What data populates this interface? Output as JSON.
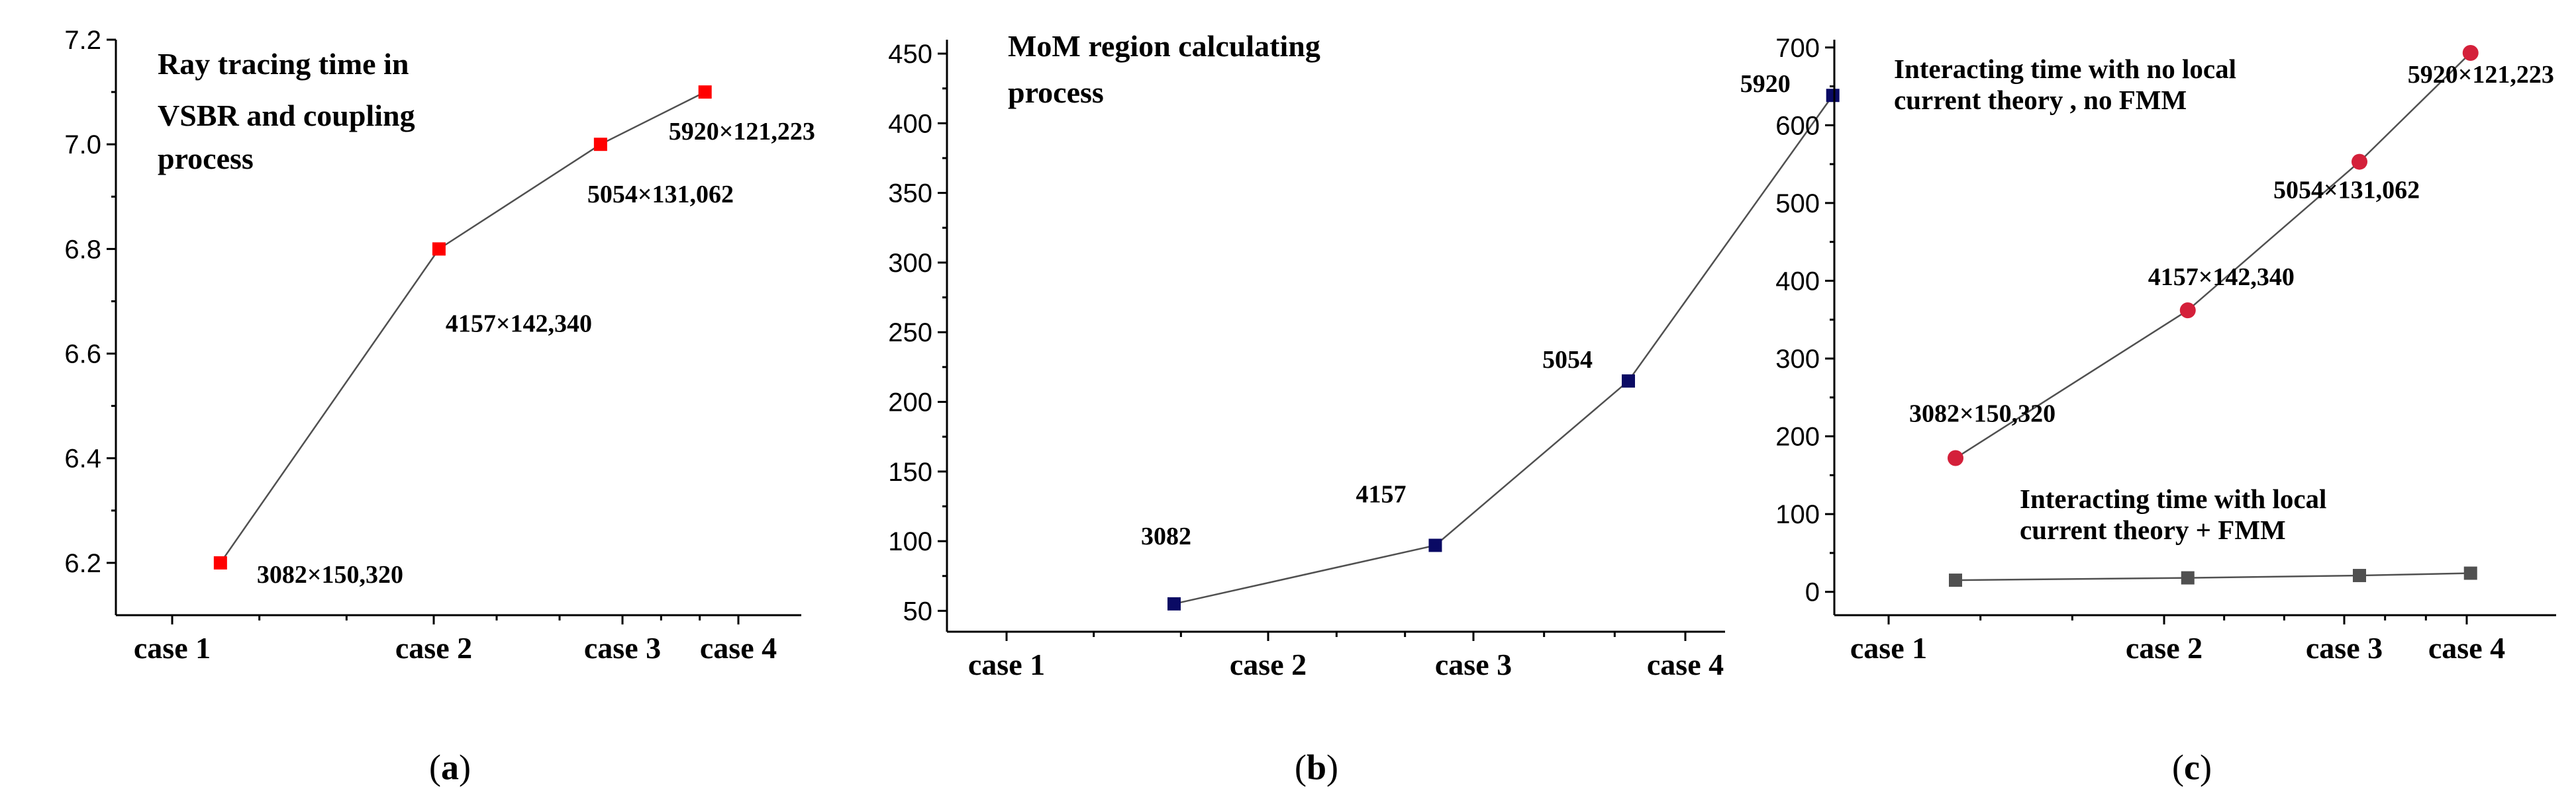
{
  "chart_data": [
    {
      "type": "line",
      "panel_label": "a",
      "title_lines": [
        "Ray tracing time in",
        "VSBR and coupling",
        "process"
      ],
      "categories": [
        "case 1",
        "case 2",
        "case 3",
        "case 4"
      ],
      "ylim": [
        6.1,
        7.2
      ],
      "yticks": [
        "6.2",
        "6.4",
        "6.6",
        "6.8",
        "7.0",
        "7.2"
      ],
      "series": [
        {
          "name": "Ray tracing time",
          "color": "#ff0000",
          "marker": "square",
          "x": [
            0.55,
            1.7,
            2.55,
            3.1
          ],
          "values": [
            6.2,
            6.8,
            7.0,
            7.1
          ],
          "labels": [
            "3082×150,320",
            "4157×142,340",
            "5054×131,062",
            "5920×121,223"
          ]
        }
      ]
    },
    {
      "type": "line",
      "panel_label": "b",
      "title_lines": [
        "MoM region calculating",
        "process"
      ],
      "categories": [
        "case 1",
        "case 2",
        "case 3",
        "case 4"
      ],
      "ylim": [
        35,
        460
      ],
      "yticks": [
        "50",
        "100",
        "150",
        "200",
        "250",
        "300",
        "350",
        "400",
        "450"
      ],
      "series": [
        {
          "name": "MoM region",
          "color": "#0a0a64",
          "marker": "square",
          "x": [
            1.0,
            2.15,
            3.0,
            3.9
          ],
          "values": [
            55,
            97,
            215,
            420
          ],
          "labels": [
            "3082",
            "4157",
            "5054",
            "5920"
          ]
        }
      ]
    },
    {
      "type": "line",
      "panel_label": "c",
      "title_lines": [
        "Interacting time with no local",
        "current theory , no FMM"
      ],
      "annotation_lines": [
        "Interacting time with local",
        "current theory + FMM"
      ],
      "categories": [
        "case 1",
        "case 2",
        "case 3",
        "case 4"
      ],
      "ylim": [
        -30,
        710
      ],
      "yticks": [
        "0",
        "100",
        "200",
        "300",
        "400",
        "500",
        "600",
        "700"
      ],
      "series": [
        {
          "name": "Interacting time with no local current theory , no FMM",
          "color": "#d4203a",
          "marker": "circle",
          "x": [
            0.6,
            1.75,
            2.6,
            3.15
          ],
          "values": [
            172,
            362,
            553,
            693
          ],
          "labels": [
            "3082×150,320",
            "4157×142,340",
            "5054×131,062",
            "5920×121,223"
          ]
        },
        {
          "name": "Interacting time with local current theory + FMM",
          "color": "#505050",
          "marker": "square",
          "x": [
            0.6,
            1.75,
            2.6,
            3.15
          ],
          "values": [
            15,
            18,
            21,
            24
          ]
        }
      ]
    }
  ]
}
